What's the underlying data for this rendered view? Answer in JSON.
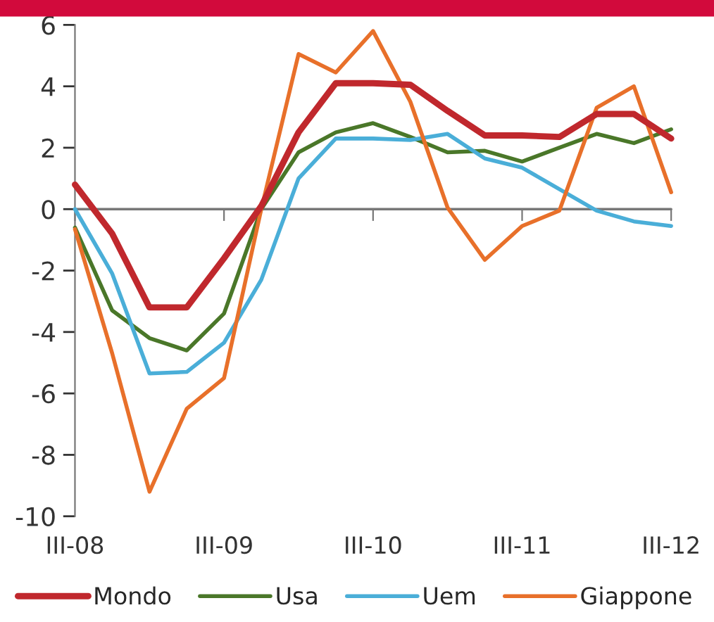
{
  "chart_data": {
    "type": "line",
    "categories": [
      "III-08",
      null,
      null,
      null,
      "III-09",
      null,
      null,
      null,
      "III-10",
      null,
      null,
      null,
      "III-11",
      null,
      null,
      null,
      "III-12"
    ],
    "series": [
      {
        "name": "Mondo",
        "color": "#c0282d",
        "values": [
          0.8,
          -0.8,
          -3.2,
          -3.2,
          -1.6,
          0.1,
          2.5,
          4.1,
          4.1,
          4.05,
          3.2,
          2.4,
          2.4,
          2.35,
          3.1,
          3.1,
          2.3
        ]
      },
      {
        "name": "Usa",
        "color": "#4a7729",
        "values": [
          -0.6,
          -3.3,
          -4.2,
          -4.6,
          -3.4,
          0.0,
          1.85,
          2.5,
          2.8,
          2.35,
          1.85,
          1.9,
          1.55,
          2.0,
          2.45,
          2.15,
          2.6
        ]
      },
      {
        "name": "Uem",
        "color": "#4aaed8",
        "values": [
          0.0,
          -2.1,
          -5.35,
          -5.3,
          -4.35,
          -2.3,
          1.0,
          2.3,
          2.3,
          2.25,
          2.45,
          1.65,
          1.35,
          0.65,
          -0.05,
          -0.4,
          -0.55
        ]
      },
      {
        "name": "Giappone",
        "color": "#e8702a",
        "values": [
          -0.65,
          -4.7,
          -9.2,
          -6.5,
          -5.5,
          0.0,
          5.05,
          4.45,
          5.8,
          3.5,
          0.05,
          -1.65,
          -0.55,
          -0.05,
          3.3,
          4.0,
          0.55
        ]
      }
    ],
    "ylim": [
      -10,
      6
    ],
    "yticks": [
      -10,
      -8,
      -6,
      -4,
      -2,
      0,
      2,
      4,
      6
    ],
    "ref_lines": [
      {
        "axis": "y",
        "value": 0,
        "color": "#777777"
      }
    ],
    "grid": false,
    "legend": "bottom",
    "marker": "none",
    "line_style": "solid"
  }
}
